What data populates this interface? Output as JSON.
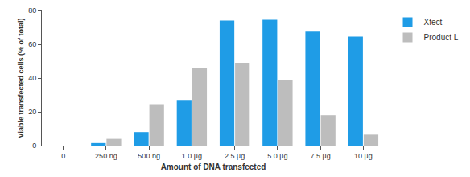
{
  "chart_data": {
    "type": "bar",
    "x_label": "Amount of DNA transfected",
    "y_label": "Viable transfected cells (% of total)",
    "categories": [
      "0",
      "250 ng",
      "500 ng",
      "1.0 µg",
      "2.5 µg",
      "5.0 µg",
      "7.5 µg",
      "10 µg"
    ],
    "series": [
      {
        "name": "Xfect",
        "color": "#1f9ce6",
        "values": [
          0,
          1.5,
          8,
          27,
          74,
          74.5,
          67.5,
          64.5
        ]
      },
      {
        "name": "Product L",
        "color": "#bdbdbd",
        "values": [
          0,
          4,
          24.5,
          46,
          49,
          39,
          18,
          6.5
        ]
      }
    ],
    "ylim": [
      0,
      80
    ],
    "yticks": [
      0,
      20,
      40,
      60,
      80
    ],
    "grid": false,
    "legend": "top right"
  }
}
